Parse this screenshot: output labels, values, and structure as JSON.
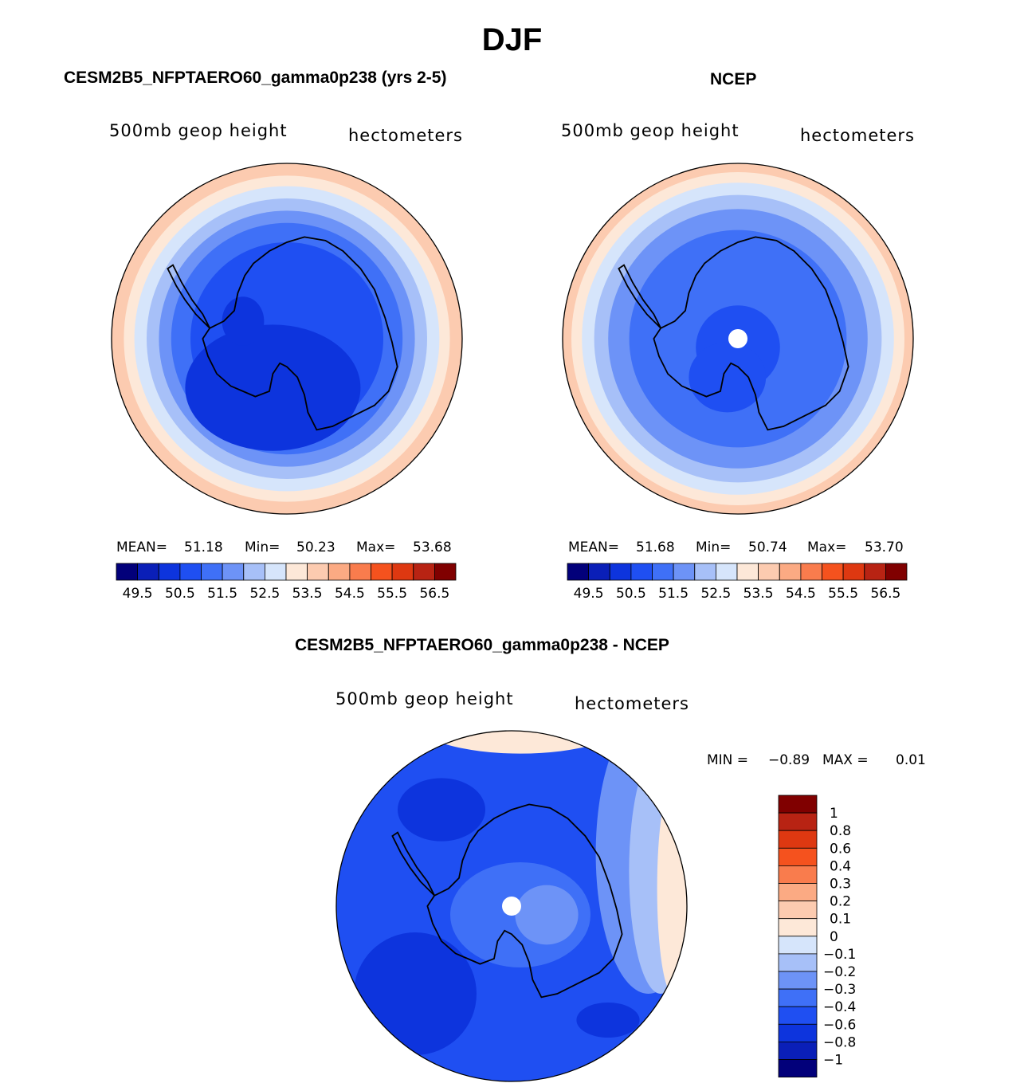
{
  "page": {
    "title": "DJF"
  },
  "colors": {
    "diverging": [
      "#02007a",
      "#0a1fb8",
      "#0d34dd",
      "#1f4ff2",
      "#3f70f7",
      "#6d93f7",
      "#a7c0f8",
      "#d6e5fb",
      "#fde8d8",
      "#fccbb0",
      "#fbaa83",
      "#f97c4d",
      "#f5521e",
      "#de3811",
      "#b82313",
      "#800000"
    ],
    "coast": "#000000",
    "pole": "#ffffff"
  },
  "chart_data": [
    {
      "type": "heatmap",
      "id": "model",
      "title": "CESM2B5_NFPTAERO60_gamma0p238 (yrs 2-5)",
      "field_label": "500mb geop height",
      "units_label": "hectometers",
      "projection": "south-polar-stereographic",
      "stats": {
        "mean_label": "MEAN=",
        "mean": "51.18",
        "min_label": "Min=",
        "min": "50.23",
        "max_label": "Max=",
        "max": "53.68"
      },
      "levels": [
        "49.5",
        "50.5",
        "51.5",
        "52.5",
        "53.5",
        "54.5",
        "55.5",
        "56.5"
      ],
      "bands": [
        {
          "r": 1.0,
          "c": 9
        },
        {
          "r": 0.93,
          "c": 8
        },
        {
          "r": 0.87,
          "c": 7
        },
        {
          "r": 0.8,
          "c": 6
        },
        {
          "r": 0.73,
          "c": 5
        },
        {
          "r": 0.66,
          "c": 4
        },
        {
          "r": 0.55,
          "c": 3
        }
      ],
      "blobs": [
        {
          "cx": -0.08,
          "cy": 0.28,
          "rx": 0.5,
          "ry": 0.36,
          "c": 2
        },
        {
          "cx": -0.25,
          "cy": -0.1,
          "rx": 0.12,
          "ry": 0.14,
          "c": 2
        }
      ],
      "pole_marker": false
    },
    {
      "type": "heatmap",
      "id": "obs",
      "title": "NCEP",
      "field_label": "500mb geop height",
      "units_label": "hectometers",
      "projection": "south-polar-stereographic",
      "stats": {
        "mean_label": "MEAN=",
        "mean": "51.68",
        "min_label": "Min=",
        "min": "50.74",
        "max_label": "Max=",
        "max": "53.70"
      },
      "levels": [
        "49.5",
        "50.5",
        "51.5",
        "52.5",
        "53.5",
        "54.5",
        "55.5",
        "56.5"
      ],
      "bands": [
        {
          "r": 1.0,
          "c": 9
        },
        {
          "r": 0.95,
          "c": 8
        },
        {
          "r": 0.89,
          "c": 7
        },
        {
          "r": 0.82,
          "c": 6
        },
        {
          "r": 0.74,
          "c": 5
        },
        {
          "r": 0.62,
          "c": 4
        }
      ],
      "blobs": [
        {
          "cx": 0.0,
          "cy": 0.05,
          "rx": 0.24,
          "ry": 0.24,
          "c": 3
        },
        {
          "cx": -0.06,
          "cy": 0.22,
          "rx": 0.22,
          "ry": 0.2,
          "c": 3
        }
      ],
      "pole_marker": true
    },
    {
      "type": "heatmap",
      "id": "diff",
      "title": "CESM2B5_NFPTAERO60_gamma0p238 - NCEP",
      "field_label": "500mb geop height",
      "units_label": "hectometers",
      "projection": "south-polar-stereographic",
      "stats": {
        "min_label": "MIN =",
        "min": "−0.89",
        "max_label": "MAX =",
        "max": "0.01"
      },
      "levels": [
        "1",
        "0.8",
        "0.6",
        "0.4",
        "0.3",
        "0.2",
        "0.1",
        "0",
        "−0.1",
        "−0.2",
        "−0.3",
        "−0.4",
        "−0.6",
        "−0.8",
        "−1"
      ],
      "bands": [
        {
          "r": 1.0,
          "c": 3
        }
      ],
      "blobs": [
        {
          "cx": 0.78,
          "cy": -0.3,
          "rx": 0.3,
          "ry": 0.8,
          "c": 5
        },
        {
          "cx": 0.85,
          "cy": -0.2,
          "rx": 0.18,
          "ry": 0.7,
          "c": 6
        },
        {
          "cx": 0.92,
          "cy": -0.1,
          "rx": 0.09,
          "ry": 0.6,
          "c": 8
        },
        {
          "cx": 0.05,
          "cy": -1.05,
          "rx": 0.6,
          "ry": 0.18,
          "c": 8
        },
        {
          "cx": 0.05,
          "cy": 0.05,
          "rx": 0.4,
          "ry": 0.3,
          "c": 4
        },
        {
          "cx": 0.2,
          "cy": 0.05,
          "rx": 0.18,
          "ry": 0.17,
          "c": 5
        },
        {
          "cx": -0.55,
          "cy": 0.5,
          "rx": 0.35,
          "ry": 0.35,
          "c": 2
        },
        {
          "cx": -0.4,
          "cy": -0.55,
          "rx": 0.25,
          "ry": 0.18,
          "c": 2
        },
        {
          "cx": 0.55,
          "cy": 0.65,
          "rx": 0.18,
          "ry": 0.1,
          "c": 2
        }
      ],
      "pole_marker": true
    }
  ]
}
